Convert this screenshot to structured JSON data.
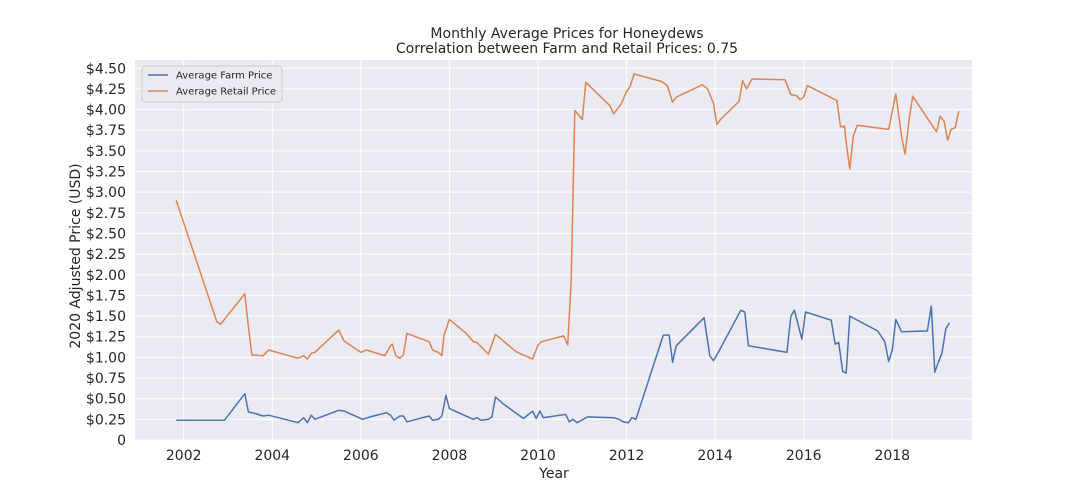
{
  "chart_data": {
    "type": "line",
    "title": "Monthly Average Prices for Honeydews",
    "subtitle": "Correlation between Farm and Retail Prices: 0.75",
    "xlabel": "Year",
    "ylabel": "2020 Adjusted Price (USD)",
    "xlim": [
      2000.9,
      2019.8
    ],
    "ylim": [
      0,
      4.6
    ],
    "x_ticks": [
      2002,
      2004,
      2006,
      2008,
      2010,
      2012,
      2014,
      2016,
      2018
    ],
    "x_tick_labels": [
      "2002",
      "2004",
      "2006",
      "2008",
      "2010",
      "2012",
      "2014",
      "2016",
      "2018"
    ],
    "y_ticks": [
      0,
      0.25,
      0.5,
      0.75,
      1.0,
      1.25,
      1.5,
      1.75,
      2.0,
      2.25,
      2.5,
      2.75,
      3.0,
      3.25,
      3.5,
      3.75,
      4.0,
      4.25,
      4.5
    ],
    "y_tick_labels": [
      "0",
      "$0.25",
      "$0.50",
      "$0.75",
      "$1.00",
      "$1.25",
      "$1.50",
      "$1.75",
      "$2.00",
      "$2.25",
      "$2.50",
      "$2.75",
      "$3.00",
      "$3.25",
      "$3.50",
      "$3.75",
      "$4.00",
      "$4.25",
      "$4.50"
    ],
    "grid": true,
    "legend_position": "top-left",
    "colors": {
      "background": "#EAEAF2",
      "grid": "#FFFFFF",
      "farm": "#4C72B0",
      "retail": "#DD8452"
    },
    "series": [
      {
        "name": "Average Farm Price",
        "color": "#4C72B0",
        "points": [
          [
            2001.83,
            0.24
          ],
          [
            2002.92,
            0.24
          ],
          [
            2003.38,
            0.56
          ],
          [
            2003.46,
            0.34
          ],
          [
            2003.62,
            0.32
          ],
          [
            2003.79,
            0.29
          ],
          [
            2003.92,
            0.3
          ],
          [
            2004.58,
            0.21
          ],
          [
            2004.71,
            0.27
          ],
          [
            2004.79,
            0.21
          ],
          [
            2004.88,
            0.3
          ],
          [
            2004.96,
            0.25
          ],
          [
            2005.5,
            0.36
          ],
          [
            2005.62,
            0.35
          ],
          [
            2006.04,
            0.25
          ],
          [
            2006.21,
            0.28
          ],
          [
            2006.58,
            0.33
          ],
          [
            2006.67,
            0.3
          ],
          [
            2006.75,
            0.24
          ],
          [
            2006.88,
            0.29
          ],
          [
            2006.96,
            0.29
          ],
          [
            2007.04,
            0.22
          ],
          [
            2007.46,
            0.28
          ],
          [
            2007.54,
            0.29
          ],
          [
            2007.62,
            0.24
          ],
          [
            2007.75,
            0.25
          ],
          [
            2007.83,
            0.29
          ],
          [
            2007.92,
            0.54
          ],
          [
            2008.0,
            0.38
          ],
          [
            2008.42,
            0.28
          ],
          [
            2008.54,
            0.25
          ],
          [
            2008.62,
            0.27
          ],
          [
            2008.71,
            0.24
          ],
          [
            2008.88,
            0.25
          ],
          [
            2008.96,
            0.28
          ],
          [
            2009.04,
            0.52
          ],
          [
            2009.21,
            0.44
          ],
          [
            2009.67,
            0.26
          ],
          [
            2009.88,
            0.35
          ],
          [
            2009.96,
            0.26
          ],
          [
            2010.04,
            0.35
          ],
          [
            2010.12,
            0.27
          ],
          [
            2010.62,
            0.31
          ],
          [
            2010.71,
            0.22
          ],
          [
            2010.79,
            0.25
          ],
          [
            2010.88,
            0.21
          ],
          [
            2011.12,
            0.28
          ],
          [
            2011.71,
            0.27
          ],
          [
            2011.83,
            0.25
          ],
          [
            2011.92,
            0.22
          ],
          [
            2012.04,
            0.21
          ],
          [
            2012.12,
            0.27
          ],
          [
            2012.21,
            0.25
          ],
          [
            2012.83,
            1.27
          ],
          [
            2012.96,
            1.27
          ],
          [
            2013.04,
            0.94
          ],
          [
            2013.12,
            1.14
          ],
          [
            2013.75,
            1.48
          ],
          [
            2013.88,
            1.02
          ],
          [
            2013.96,
            0.96
          ],
          [
            2014.08,
            1.07
          ],
          [
            2014.58,
            1.57
          ],
          [
            2014.67,
            1.55
          ],
          [
            2014.75,
            1.14
          ],
          [
            2014.88,
            1.13
          ],
          [
            2015.62,
            1.06
          ],
          [
            2015.71,
            1.5
          ],
          [
            2015.79,
            1.57
          ],
          [
            2015.96,
            1.22
          ],
          [
            2016.04,
            1.55
          ],
          [
            2016.62,
            1.45
          ],
          [
            2016.71,
            1.16
          ],
          [
            2016.79,
            1.18
          ],
          [
            2016.88,
            0.83
          ],
          [
            2016.96,
            0.81
          ],
          [
            2017.04,
            1.5
          ],
          [
            2017.67,
            1.32
          ],
          [
            2017.83,
            1.19
          ],
          [
            2017.92,
            0.95
          ],
          [
            2018.0,
            1.09
          ],
          [
            2018.08,
            1.46
          ],
          [
            2018.21,
            1.31
          ],
          [
            2018.79,
            1.32
          ],
          [
            2018.88,
            1.62
          ],
          [
            2018.96,
            0.82
          ],
          [
            2019.04,
            0.94
          ],
          [
            2019.12,
            1.05
          ],
          [
            2019.21,
            1.35
          ],
          [
            2019.29,
            1.42
          ]
        ]
      },
      {
        "name": "Average Retail Price",
        "color": "#DD8452",
        "points": [
          [
            2001.83,
            2.9
          ],
          [
            2002.75,
            1.43
          ],
          [
            2002.83,
            1.4
          ],
          [
            2003.38,
            1.77
          ],
          [
            2003.46,
            1.37
          ],
          [
            2003.54,
            1.03
          ],
          [
            2003.79,
            1.02
          ],
          [
            2003.92,
            1.09
          ],
          [
            2004.58,
            0.99
          ],
          [
            2004.71,
            1.02
          ],
          [
            2004.79,
            0.98
          ],
          [
            2004.88,
            1.05
          ],
          [
            2004.96,
            1.06
          ],
          [
            2005.5,
            1.33
          ],
          [
            2005.62,
            1.2
          ],
          [
            2006.0,
            1.06
          ],
          [
            2006.12,
            1.09
          ],
          [
            2006.54,
            1.02
          ],
          [
            2006.67,
            1.14
          ],
          [
            2006.71,
            1.16
          ],
          [
            2006.79,
            1.02
          ],
          [
            2006.88,
            0.99
          ],
          [
            2006.96,
            1.03
          ],
          [
            2007.04,
            1.29
          ],
          [
            2007.54,
            1.19
          ],
          [
            2007.62,
            1.09
          ],
          [
            2007.75,
            1.06
          ],
          [
            2007.83,
            1.02
          ],
          [
            2007.88,
            1.27
          ],
          [
            2008.0,
            1.46
          ],
          [
            2008.38,
            1.29
          ],
          [
            2008.54,
            1.19
          ],
          [
            2008.62,
            1.18
          ],
          [
            2008.88,
            1.04
          ],
          [
            2009.04,
            1.28
          ],
          [
            2009.5,
            1.07
          ],
          [
            2009.62,
            1.04
          ],
          [
            2009.88,
            0.98
          ],
          [
            2010.0,
            1.15
          ],
          [
            2010.08,
            1.19
          ],
          [
            2010.58,
            1.26
          ],
          [
            2010.67,
            1.15
          ],
          [
            2010.75,
            1.93
          ],
          [
            2010.83,
            3.99
          ],
          [
            2011.0,
            3.88
          ],
          [
            2011.08,
            4.33
          ],
          [
            2011.62,
            4.05
          ],
          [
            2011.71,
            3.95
          ],
          [
            2011.88,
            4.07
          ],
          [
            2012.0,
            4.22
          ],
          [
            2012.08,
            4.28
          ],
          [
            2012.17,
            4.43
          ],
          [
            2012.79,
            4.34
          ],
          [
            2012.92,
            4.29
          ],
          [
            2013.04,
            4.09
          ],
          [
            2013.12,
            4.15
          ],
          [
            2013.71,
            4.3
          ],
          [
            2013.83,
            4.25
          ],
          [
            2013.96,
            4.08
          ],
          [
            2014.04,
            3.82
          ],
          [
            2014.12,
            3.88
          ],
          [
            2014.54,
            4.1
          ],
          [
            2014.62,
            4.35
          ],
          [
            2014.71,
            4.25
          ],
          [
            2014.83,
            4.37
          ],
          [
            2015.58,
            4.36
          ],
          [
            2015.71,
            4.18
          ],
          [
            2015.83,
            4.17
          ],
          [
            2015.92,
            4.12
          ],
          [
            2016.0,
            4.15
          ],
          [
            2016.08,
            4.29
          ],
          [
            2016.75,
            4.11
          ],
          [
            2016.83,
            3.79
          ],
          [
            2016.92,
            3.8
          ],
          [
            2016.96,
            3.6
          ],
          [
            2017.04,
            3.28
          ],
          [
            2017.12,
            3.68
          ],
          [
            2017.21,
            3.81
          ],
          [
            2017.92,
            3.76
          ],
          [
            2018.08,
            4.19
          ],
          [
            2018.21,
            3.67
          ],
          [
            2018.29,
            3.46
          ],
          [
            2018.38,
            3.88
          ],
          [
            2018.46,
            4.16
          ],
          [
            2019.0,
            3.73
          ],
          [
            2019.08,
            3.92
          ],
          [
            2019.17,
            3.86
          ],
          [
            2019.25,
            3.63
          ],
          [
            2019.33,
            3.76
          ],
          [
            2019.42,
            3.78
          ],
          [
            2019.5,
            3.98
          ]
        ]
      }
    ]
  }
}
